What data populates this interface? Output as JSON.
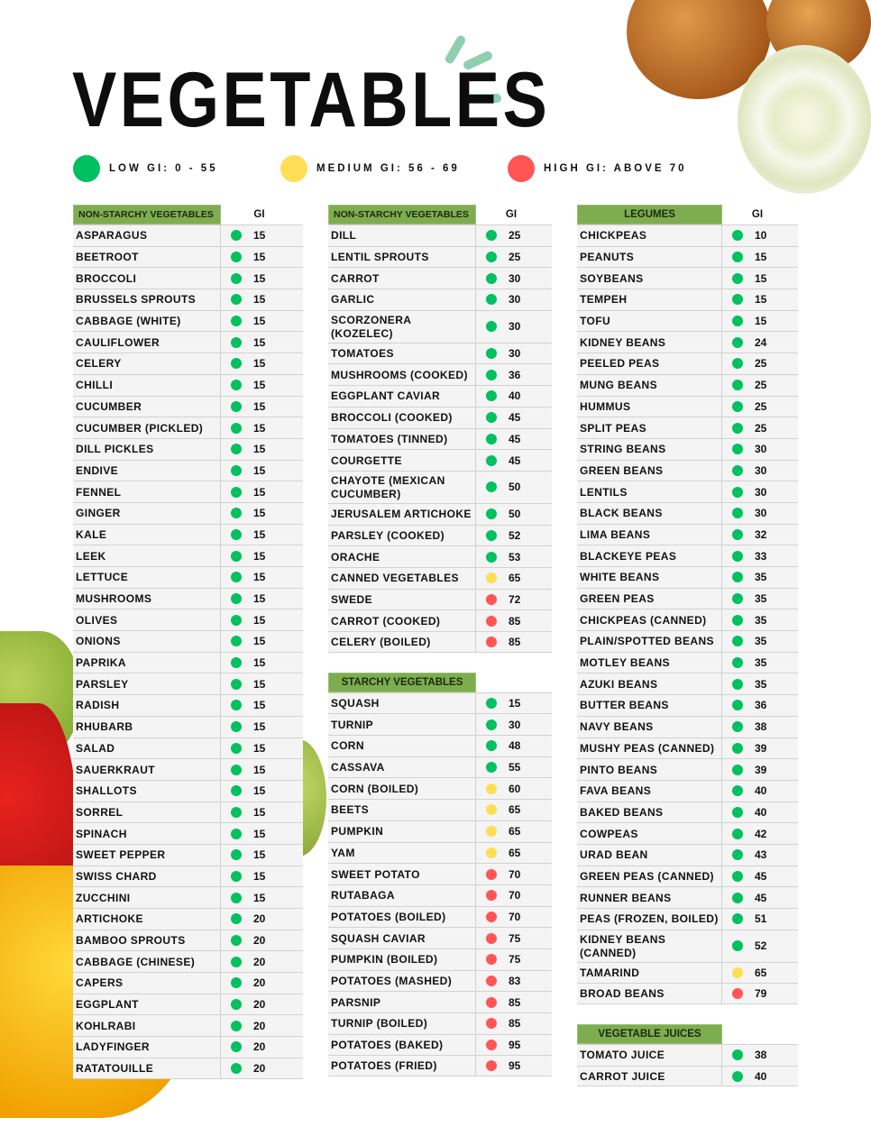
{
  "title": "VEGETABLES",
  "colors": {
    "low": "#00c060",
    "medium": "#ffdd55",
    "high": "#ff5555",
    "header": "#7ead4f"
  },
  "legend": [
    {
      "label": "LOW GI: 0 - 55",
      "level": "low"
    },
    {
      "label": "MEDIUM GI: 56 - 69",
      "level": "medium"
    },
    {
      "label": "HIGH GI: ABOVE 70",
      "level": "high"
    }
  ],
  "tables": [
    {
      "title": "NON-STARCHY VEGETABLES",
      "gi_label": "GI",
      "rows": [
        [
          "ASPARAGUS",
          15
        ],
        [
          "BEETROOT",
          15
        ],
        [
          "BROCCOLI",
          15
        ],
        [
          "BRUSSELS SPROUTS",
          15
        ],
        [
          "CABBAGE (WHITE)",
          15
        ],
        [
          "CAULIFLOWER",
          15
        ],
        [
          "CELERY",
          15
        ],
        [
          "CHILLI",
          15
        ],
        [
          "CUCUMBER",
          15
        ],
        [
          "CUCUMBER (PICKLED)",
          15
        ],
        [
          "DILL PICKLES",
          15
        ],
        [
          "ENDIVE",
          15
        ],
        [
          "FENNEL",
          15
        ],
        [
          "GINGER",
          15
        ],
        [
          "KALE",
          15
        ],
        [
          "LEEK",
          15
        ],
        [
          "LETTUCE",
          15
        ],
        [
          "MUSHROOMS",
          15
        ],
        [
          "OLIVES",
          15
        ],
        [
          "ONIONS",
          15
        ],
        [
          "PAPRIKA",
          15
        ],
        [
          "PARSLEY",
          15
        ],
        [
          "RADISH",
          15
        ],
        [
          "RHUBARB",
          15
        ],
        [
          "SALAD",
          15
        ],
        [
          "SAUERKRAUT",
          15
        ],
        [
          "SHALLOTS",
          15
        ],
        [
          "SORREL",
          15
        ],
        [
          "SPINACH",
          15
        ],
        [
          "SWEET PEPPER",
          15
        ],
        [
          "SWISS CHARD",
          15
        ],
        [
          "ZUCCHINI",
          15
        ],
        [
          "ARTICHOKE",
          20
        ],
        [
          "BAMBOO SPROUTS",
          20
        ],
        [
          "CABBAGE (CHINESE)",
          20
        ],
        [
          "CAPERS",
          20
        ],
        [
          "EGGPLANT",
          20
        ],
        [
          "KOHLRABI",
          20
        ],
        [
          "LADYFINGER",
          20
        ],
        [
          "RATATOUILLE",
          20
        ]
      ]
    },
    {
      "title": "NON-STARCHY VEGETABLES",
      "gi_label": "GI",
      "rows": [
        [
          "DILL",
          25
        ],
        [
          "LENTIL SPROUTS",
          25
        ],
        [
          "CARROT",
          30
        ],
        [
          "GARLIC",
          30
        ],
        [
          "SCORZONERA (KOZELEC)",
          30
        ],
        [
          "TOMATOES",
          30
        ],
        [
          "MUSHROOMS (COOKED)",
          36
        ],
        [
          "EGGPLANT CAVIAR",
          40
        ],
        [
          "BROCCOLI (COOKED)",
          45
        ],
        [
          "TOMATOES (TINNED)",
          45
        ],
        [
          "COURGETTE",
          45
        ],
        [
          "CHAYOTE (MEXICAN CUCUMBER)",
          50
        ],
        [
          "JERUSALEM ARTICHOKE",
          50
        ],
        [
          "PARSLEY (COOKED)",
          52
        ],
        [
          "ORACHE",
          53
        ],
        [
          "CANNED VEGETABLES",
          65
        ],
        [
          "SWEDE",
          72
        ],
        [
          "CARROT (COOKED)",
          85
        ],
        [
          "CELERY (BOILED)",
          85
        ]
      ]
    },
    {
      "title": "STARCHY VEGETABLES",
      "gi_label": "",
      "rows": [
        [
          "SQUASH",
          15
        ],
        [
          "TURNIP",
          30
        ],
        [
          "CORN",
          48
        ],
        [
          "CASSAVA",
          55
        ],
        [
          "CORN (BOILED)",
          60
        ],
        [
          "BEETS",
          65
        ],
        [
          "PUMPKIN",
          65
        ],
        [
          "YAM",
          65
        ],
        [
          "SWEET POTATO",
          70
        ],
        [
          "RUTABAGA",
          70
        ],
        [
          "POTATOES (BOILED)",
          70
        ],
        [
          "SQUASH CAVIAR",
          75
        ],
        [
          "PUMPKIN (BOILED)",
          75
        ],
        [
          "POTATOES (MASHED)",
          83
        ],
        [
          "PARSNIP",
          85
        ],
        [
          "TURNIP (BOILED)",
          85
        ],
        [
          "POTATOES (BAKED)",
          95
        ],
        [
          "POTATOES (FRIED)",
          95
        ]
      ]
    },
    {
      "title": "LEGUMES",
      "gi_label": "GI",
      "rows": [
        [
          "CHICKPEAS",
          10
        ],
        [
          "PEANUTS",
          15
        ],
        [
          "SOYBEANS",
          15
        ],
        [
          "TEMPEH",
          15
        ],
        [
          "TOFU",
          15
        ],
        [
          "KIDNEY BEANS",
          24
        ],
        [
          "PEELED PEAS",
          25
        ],
        [
          "MUNG BEANS",
          25
        ],
        [
          "HUMMUS",
          25
        ],
        [
          "SPLIT PEAS",
          25
        ],
        [
          "STRING BEANS",
          30
        ],
        [
          "GREEN BEANS",
          30
        ],
        [
          "LENTILS",
          30
        ],
        [
          "BLACK BEANS",
          30
        ],
        [
          "LIMA BEANS",
          32
        ],
        [
          "BLACKEYE PEAS",
          33
        ],
        [
          "WHITE BEANS",
          35
        ],
        [
          "GREEN PEAS",
          35
        ],
        [
          "CHICKPEAS (CANNED)",
          35
        ],
        [
          "PLAIN/SPOTTED BEANS",
          35
        ],
        [
          "MOTLEY BEANS",
          35
        ],
        [
          "AZUKI BEANS",
          35
        ],
        [
          "BUTTER BEANS",
          36
        ],
        [
          "NAVY BEANS",
          38
        ],
        [
          "MUSHY PEAS (CANNED)",
          39
        ],
        [
          "PINTO BEANS",
          39
        ],
        [
          "FAVA BEANS",
          40
        ],
        [
          "BAKED BEANS",
          40
        ],
        [
          "COWPEAS",
          42
        ],
        [
          "URAD BEAN",
          43
        ],
        [
          "GREEN PEAS (CANNED)",
          45
        ],
        [
          "RUNNER BEANS",
          45
        ],
        [
          "PEAS (FROZEN, BOILED)",
          51
        ],
        [
          "KIDNEY BEANS (CANNED)",
          52
        ],
        [
          "TAMARIND",
          65
        ],
        [
          "BROAD BEANS",
          79
        ]
      ]
    },
    {
      "title": "VEGETABLE JUICES",
      "gi_label": "",
      "rows": [
        [
          "TOMATO JUICE",
          38
        ],
        [
          "CARROT JUICE",
          40
        ]
      ]
    }
  ]
}
